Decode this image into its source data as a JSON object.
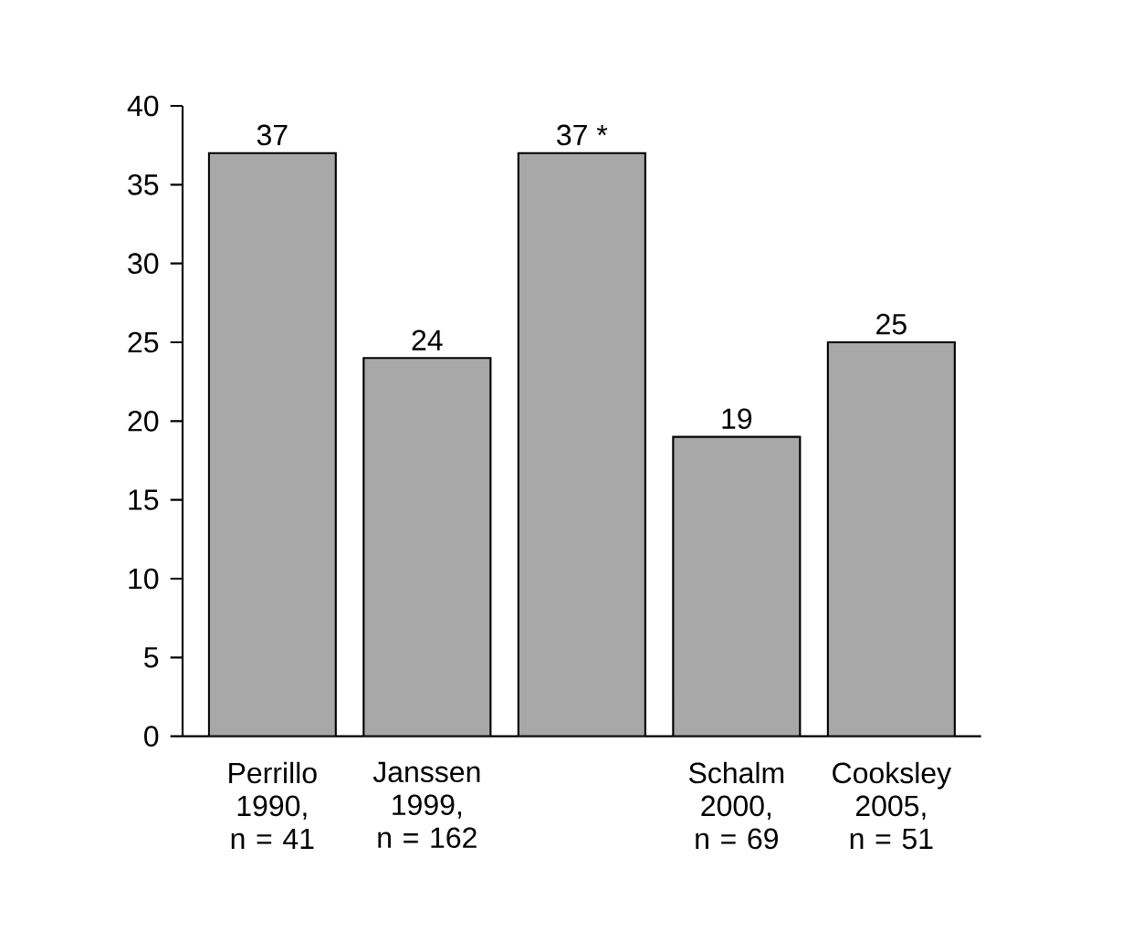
{
  "chart_data": {
    "type": "bar",
    "categories": [
      "Perrillo 1990, n = 41",
      "Janssen 1999, n = 162",
      null,
      "Schalm 2000, n = 69",
      "Cooksley 2005, n = 51"
    ],
    "values": [
      37,
      24,
      37,
      19,
      25
    ],
    "value_labels": [
      "37",
      "24",
      "37 *",
      "19",
      "25"
    ],
    "color": "#a8a8a8",
    "ylim": [
      0,
      40
    ],
    "yticks": [
      0,
      5,
      10,
      15,
      20,
      25,
      30,
      35,
      40
    ],
    "grid": false
  }
}
